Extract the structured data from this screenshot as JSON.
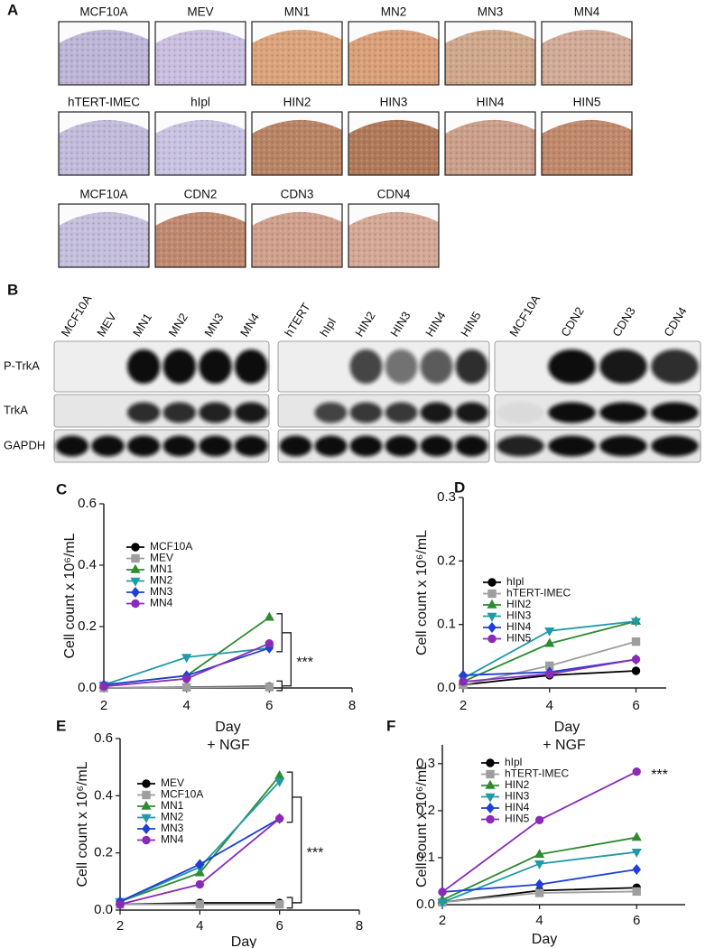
{
  "panel_a": {
    "label": "A",
    "rows": [
      [
        "MCF10A",
        "MEV",
        "MN1",
        "MN2",
        "MN3",
        "MN4"
      ],
      [
        "hTERT-IMEC",
        "hIpl",
        "HIN2",
        "HIN3",
        "HIN4",
        "HIN5"
      ],
      [
        "MCF10A",
        "CDN2",
        "CDN3",
        "CDN4"
      ]
    ]
  },
  "panel_b": {
    "label": "B",
    "groups": [
      [
        "MCF10A",
        "MEV",
        "MN1",
        "MN2",
        "MN3",
        "MN4"
      ],
      [
        "hTERT",
        "hIpl",
        "HIN2",
        "HIN3",
        "HIN4",
        "HIN5"
      ],
      [
        "MCF10A",
        "CDN2",
        "CDN3",
        "CDN4"
      ]
    ],
    "rows": [
      "P-TrkA",
      "TrkA",
      "GAPDH"
    ]
  },
  "chart_data": [
    {
      "type": "line",
      "label": "C",
      "x_label": "Day",
      "y_label": "Cell count x 10⁶/mL",
      "annotation": "***",
      "x": [
        2,
        4,
        6
      ],
      "xlim": [
        2,
        8
      ],
      "xticks": [
        2,
        4,
        6,
        8
      ],
      "ylim": [
        0,
        0.6
      ],
      "yticks": [
        {
          "value": 0,
          "label": "0.0"
        },
        0.2,
        0.4,
        0.6
      ],
      "series": [
        {
          "name": "MCF10A",
          "color": "#000000",
          "marker": "circle",
          "values": [
            0.0,
            0.003,
            0.005
          ]
        },
        {
          "name": "MEV",
          "color": "#9e9e9e",
          "marker": "square",
          "values": [
            0.0,
            0.002,
            0.003
          ]
        },
        {
          "name": "MN1",
          "color": "#2e8b2e",
          "marker": "triangle",
          "values": [
            0.01,
            0.04,
            0.23
          ]
        },
        {
          "name": "MN2",
          "color": "#1f9aa8",
          "marker": "triangle-down",
          "values": [
            0.01,
            0.1,
            0.13
          ]
        },
        {
          "name": "MN3",
          "color": "#1f3fd6",
          "marker": "diamond",
          "values": [
            0.01,
            0.04,
            0.13
          ]
        },
        {
          "name": "MN4",
          "color": "#8a2bb8",
          "marker": "circle",
          "values": [
            0.005,
            0.03,
            0.145
          ]
        }
      ]
    },
    {
      "type": "line",
      "label": "D",
      "x_label": "Day",
      "y_label": "Cell count x 10⁶/mL",
      "x": [
        2,
        4,
        6
      ],
      "xlim": [
        2,
        6.7
      ],
      "xticks": [
        2,
        4,
        6
      ],
      "ylim": [
        0,
        0.3
      ],
      "yticks": [
        {
          "value": 0,
          "label": "0.0"
        },
        0.1,
        0.2,
        0.3
      ],
      "series": [
        {
          "name": "hIpl",
          "color": "#000000",
          "marker": "circle",
          "values": [
            0.005,
            0.02,
            0.027
          ]
        },
        {
          "name": "hTERT-IMEC",
          "color": "#9e9e9e",
          "marker": "square",
          "values": [
            0.005,
            0.035,
            0.073
          ]
        },
        {
          "name": "HIN2",
          "color": "#2e8b2e",
          "marker": "triangle",
          "values": [
            0.01,
            0.07,
            0.105
          ]
        },
        {
          "name": "HIN3",
          "color": "#1f9aa8",
          "marker": "triangle-down",
          "values": [
            0.015,
            0.09,
            0.105
          ]
        },
        {
          "name": "HIN4",
          "color": "#1f3fd6",
          "marker": "diamond",
          "values": [
            0.02,
            0.025,
            0.045
          ]
        },
        {
          "name": "HIN5",
          "color": "#8a2bb8",
          "marker": "circle",
          "values": [
            0.01,
            0.022,
            0.045
          ]
        }
      ]
    },
    {
      "type": "line",
      "label": "E",
      "subtitle": "+ NGF",
      "x_label": "Day",
      "y_label": "Cell count x 10⁶/mL",
      "annotation": "***",
      "x": [
        2,
        4,
        6
      ],
      "xlim": [
        2,
        8
      ],
      "xticks": [
        2,
        4,
        6,
        8
      ],
      "ylim": [
        0,
        0.6
      ],
      "yticks": [
        {
          "value": 0,
          "label": "0.0"
        },
        0.2,
        0.4,
        0.6
      ],
      "series": [
        {
          "name": "MEV",
          "color": "#000000",
          "marker": "circle",
          "values": [
            0.02,
            0.025,
            0.025
          ]
        },
        {
          "name": "MCF10A",
          "color": "#9e9e9e",
          "marker": "square",
          "values": [
            0.02,
            0.02,
            0.02
          ]
        },
        {
          "name": "MN1",
          "color": "#2e8b2e",
          "marker": "triangle",
          "values": [
            0.03,
            0.13,
            0.47
          ]
        },
        {
          "name": "MN2",
          "color": "#1f9aa8",
          "marker": "triangle-down",
          "values": [
            0.03,
            0.15,
            0.45
          ]
        },
        {
          "name": "MN3",
          "color": "#1f3fd6",
          "marker": "diamond",
          "values": [
            0.03,
            0.16,
            0.32
          ]
        },
        {
          "name": "MN4",
          "color": "#8a2bb8",
          "marker": "circle",
          "values": [
            0.02,
            0.09,
            0.32
          ]
        }
      ]
    },
    {
      "type": "line",
      "label": "F",
      "subtitle": "+ NGF",
      "x_label": "Day",
      "y_label": "Cell count x 10⁶/mL",
      "annotation": "***",
      "x": [
        2,
        4,
        6
      ],
      "xlim": [
        2,
        7
      ],
      "xticks": [
        2,
        4,
        6
      ],
      "ylim": [
        0,
        0.34
      ],
      "yticks": [
        {
          "value": 0,
          "label": "0.0"
        },
        0.1,
        0.2,
        0.3
      ],
      "series": [
        {
          "name": "hIpl",
          "color": "#000000",
          "marker": "circle",
          "values": [
            0.005,
            0.03,
            0.036
          ]
        },
        {
          "name": "hTERT-IMEC",
          "color": "#9e9e9e",
          "marker": "square",
          "values": [
            0.005,
            0.025,
            0.028
          ]
        },
        {
          "name": "HIN2",
          "color": "#2e8b2e",
          "marker": "triangle",
          "values": [
            0.01,
            0.107,
            0.143
          ]
        },
        {
          "name": "HIN3",
          "color": "#1f9aa8",
          "marker": "triangle-down",
          "values": [
            0.005,
            0.087,
            0.112
          ]
        },
        {
          "name": "HIN4",
          "color": "#1f3fd6",
          "marker": "diamond",
          "values": [
            0.027,
            0.043,
            0.075
          ]
        },
        {
          "name": "HIN5",
          "color": "#8a2bb8",
          "marker": "circle",
          "values": [
            0.027,
            0.18,
            0.283
          ]
        }
      ]
    }
  ]
}
